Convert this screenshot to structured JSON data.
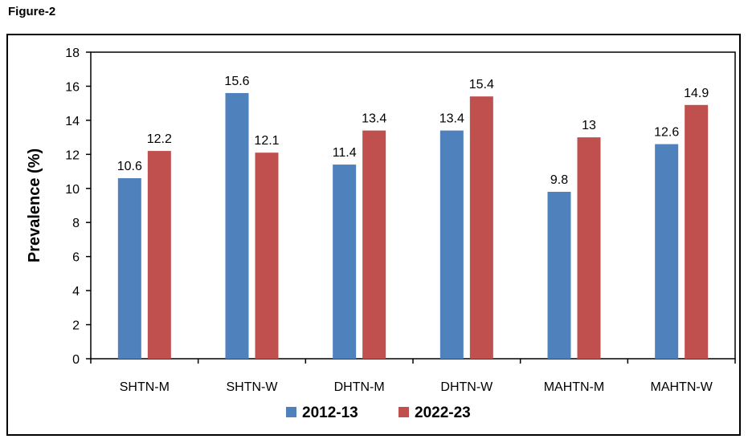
{
  "figure_label": "Figure-2",
  "colors": {
    "series_2012": "#4F81BD",
    "series_2022": "#C0504D",
    "axis": "#000000"
  },
  "chart_data": {
    "type": "bar",
    "title": "",
    "xlabel": "",
    "ylabel": "Prevalence (%)",
    "ylim": [
      0,
      18
    ],
    "yticks": [
      0,
      2,
      4,
      6,
      8,
      10,
      12,
      14,
      16,
      18
    ],
    "grid": false,
    "legend_position": "bottom",
    "categories": [
      "SHTN-M",
      "SHTN-W",
      "DHTN-M",
      "DHTN-W",
      "MAHTN-M",
      "MAHTN-W"
    ],
    "series": [
      {
        "name": "2012-13",
        "color": "#4F81BD",
        "values": [
          10.6,
          15.6,
          11.4,
          13.4,
          9.8,
          12.6
        ],
        "labels": [
          "10.6",
          "15.6",
          "11.4",
          "13.4",
          "9.8",
          "12.6"
        ]
      },
      {
        "name": "2022-23",
        "color": "#C0504D",
        "values": [
          12.2,
          12.1,
          13.4,
          15.4,
          13,
          14.9
        ],
        "labels": [
          "12.2",
          "12.1",
          "13.4",
          "15.4",
          "13",
          "14.9"
        ]
      }
    ]
  }
}
